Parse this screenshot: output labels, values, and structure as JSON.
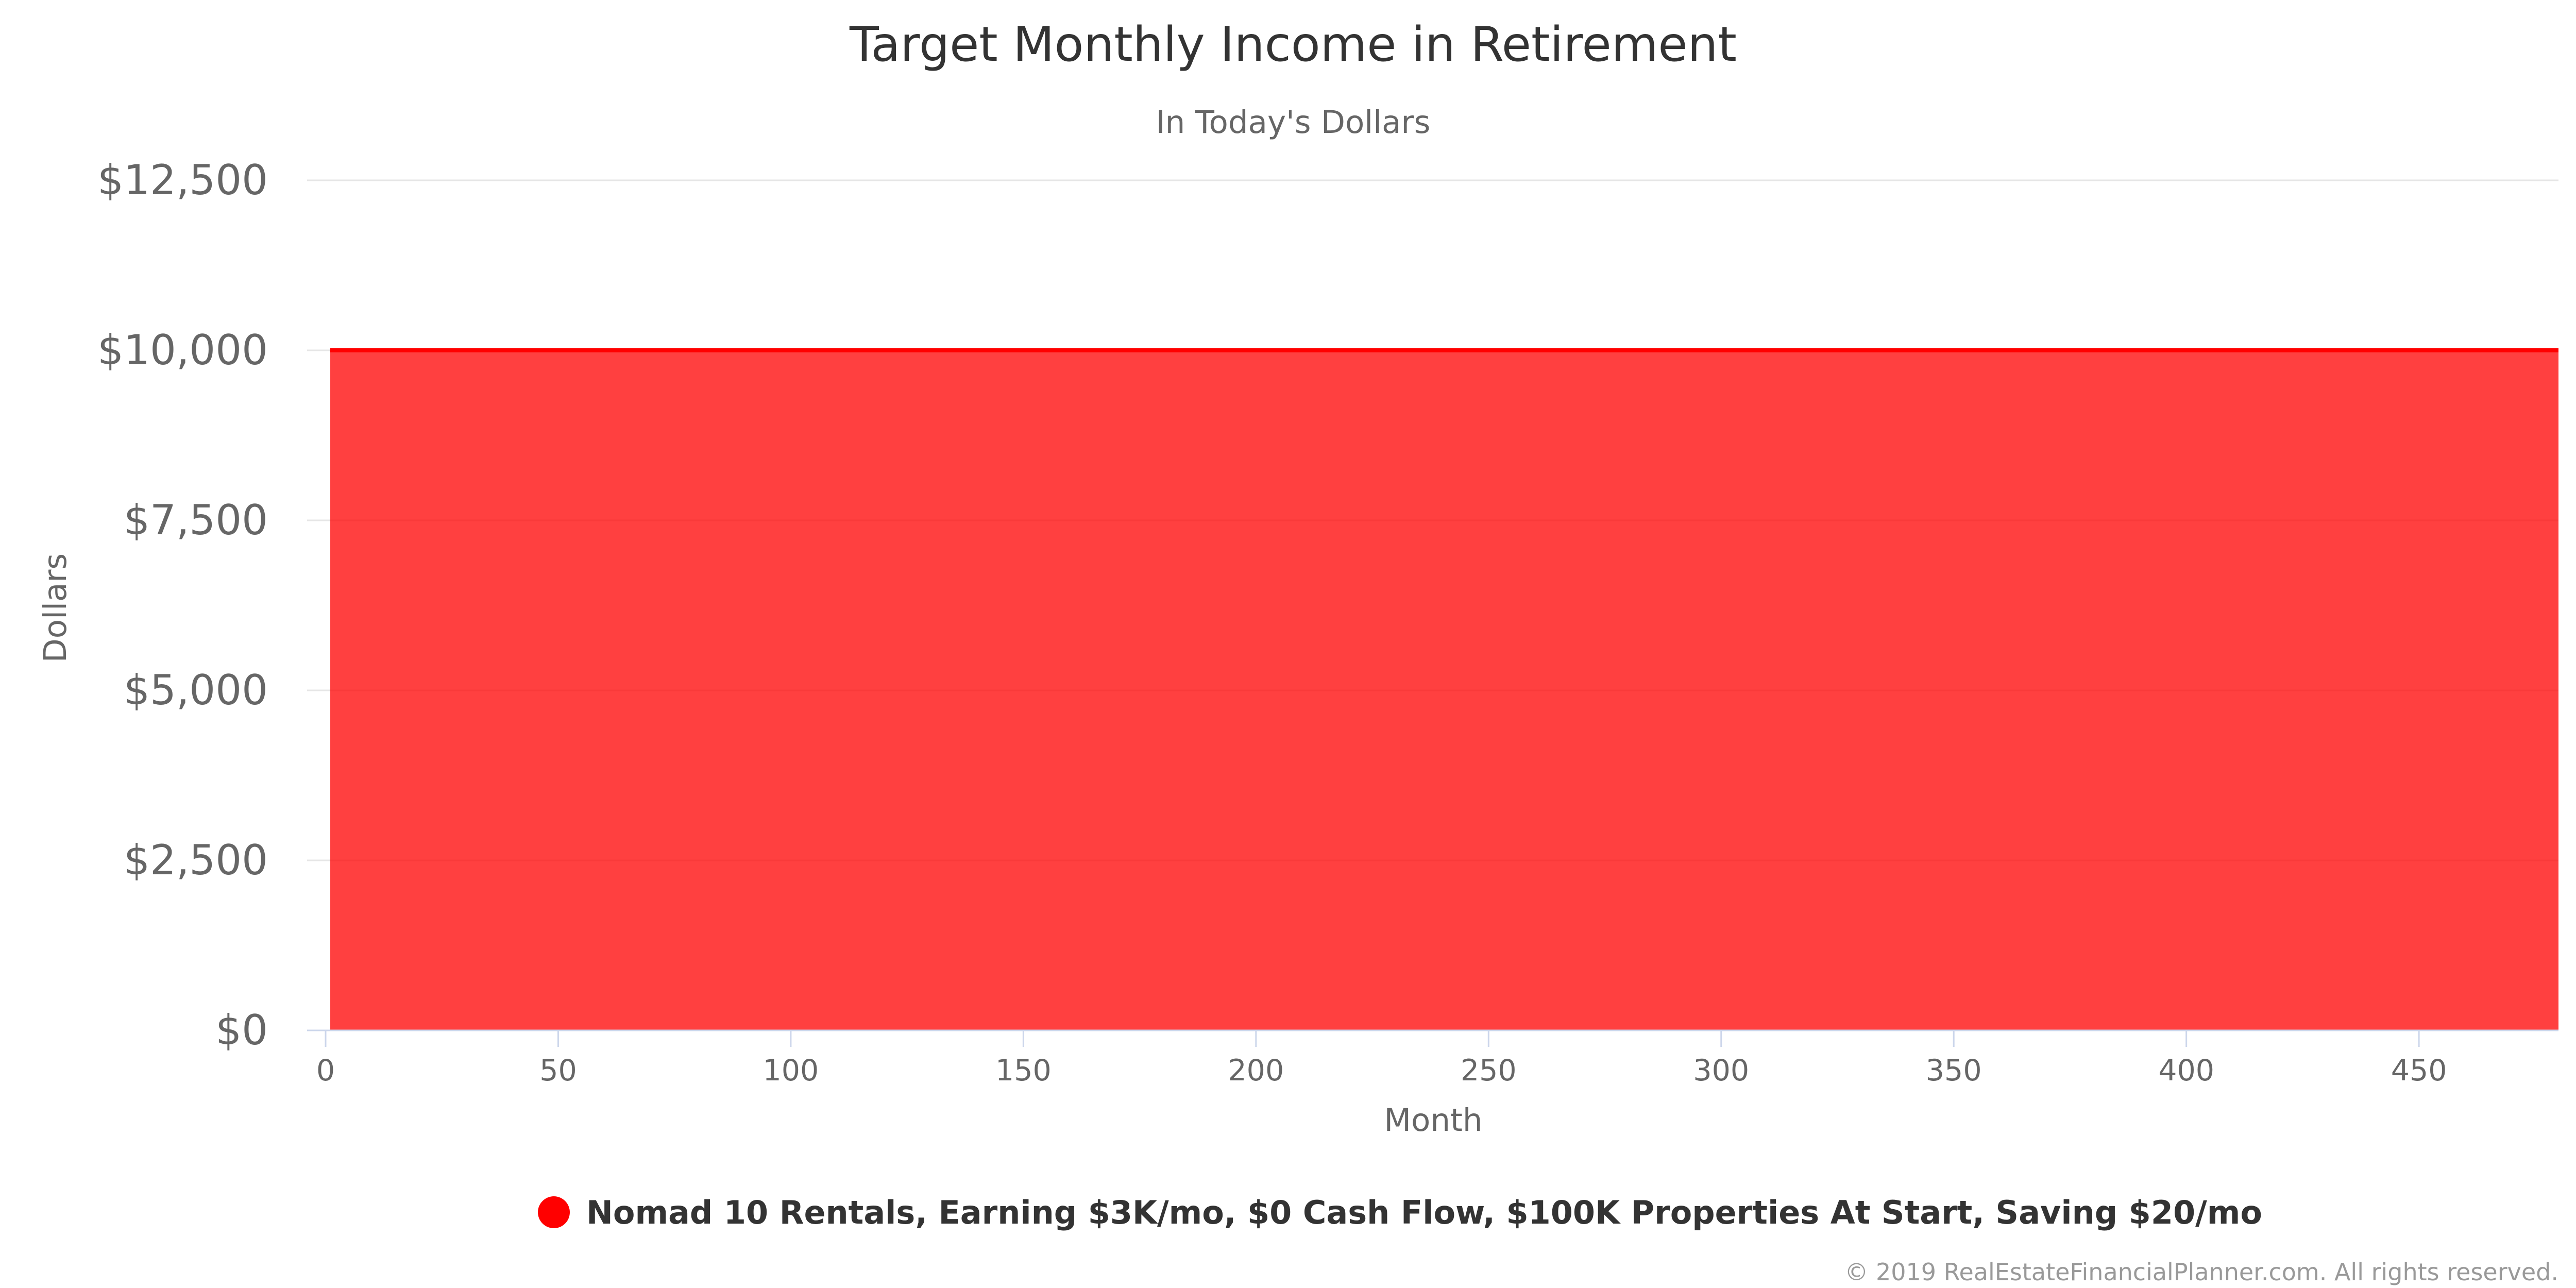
{
  "chart_data": {
    "type": "area",
    "title": "Target Monthly Income in Retirement",
    "subtitle": "In Today's Dollars",
    "xlabel": "Month",
    "ylabel": "Dollars",
    "xlim": [
      0,
      480
    ],
    "ylim": [
      0,
      12500
    ],
    "x_ticks": [
      0,
      50,
      100,
      150,
      200,
      250,
      300,
      350,
      400,
      450
    ],
    "y_ticks": [
      0,
      2500,
      5000,
      7500,
      10000,
      12500
    ],
    "y_tick_labels": [
      "$0",
      "$2,500",
      "$5,000",
      "$7,500",
      "$10,000",
      "$12,500"
    ],
    "grid": "horizontal",
    "legend_position": "bottom-center",
    "series": [
      {
        "name": "Nomad 10 Rentals, Earning $3K/mo, $0 Cash Flow, $100K Properties At Start, Saving $20/mo",
        "color": "#ff0000",
        "x": [
          1,
          480
        ],
        "values": [
          10000,
          10000
        ]
      }
    ],
    "credits": "© 2019 RealEstateFinancialPlanner.com. All rights reserved."
  }
}
